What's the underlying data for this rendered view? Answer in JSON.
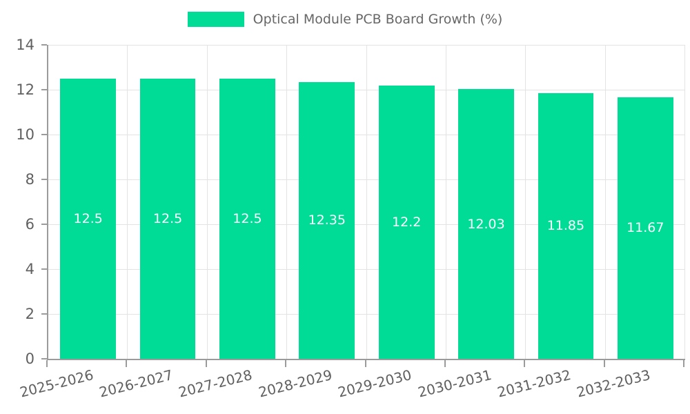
{
  "legend": {
    "label": "Optical Module PCB Board Growth (%)"
  },
  "chart_data": {
    "type": "bar",
    "title": "",
    "legend_label": "Optical Module PCB Board Growth (%)",
    "legend_position": "top",
    "categories": [
      "2025-2026",
      "2026-2027",
      "2027-2028",
      "2028-2029",
      "2029-2030",
      "2030-2031",
      "2031-2032",
      "2032-2033"
    ],
    "values": [
      12.5,
      12.5,
      12.5,
      12.35,
      12.2,
      12.03,
      11.85,
      11.67
    ],
    "value_labels": [
      "12.5",
      "12.5",
      "12.5",
      "12.35",
      "12.2",
      "12.03",
      "11.85",
      "11.67"
    ],
    "xlabel": "",
    "ylabel": "",
    "ylim": [
      0,
      14
    ],
    "yticks": [
      0,
      2,
      4,
      6,
      8,
      10,
      12,
      14
    ],
    "grid": true
  },
  "colors": {
    "bar": "#00DC96",
    "grid": "#e3e3e3",
    "axis": "#9b9b9b",
    "tick_text": "#606060",
    "legend_text": "#666666",
    "value_label": "#ffffff",
    "background": "#ffffff"
  }
}
